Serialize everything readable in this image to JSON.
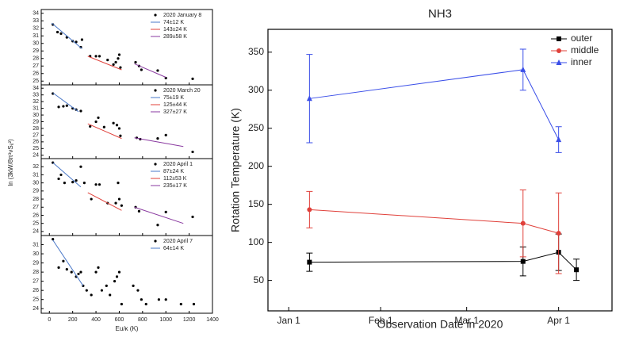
{
  "chart_data": [
    {
      "type": "scatter",
      "ylabel": "ln (3kW/8π³νSᵢⱼ²)",
      "xlim": [
        -70,
        1400
      ],
      "ylim": [
        24.5,
        34.5
      ],
      "yticks": [
        25,
        26,
        27,
        28,
        29,
        30,
        31,
        32,
        33,
        34
      ],
      "xticks": [
        0,
        200,
        400,
        600,
        800,
        1000,
        1200,
        1400
      ],
      "legend": "upper right",
      "series": [
        {
          "name": "2020 January 8",
          "color": "#000000",
          "marker": "dot",
          "x": [
            30,
            70,
            100,
            150,
            200,
            230,
            280,
            270,
            350,
            400,
            430,
            500,
            550,
            570,
            590,
            600,
            610,
            740,
            770,
            790,
            930,
            1000,
            1230
          ],
          "values": [
            32.5,
            31.5,
            31.3,
            30.8,
            30.3,
            30.2,
            30.5,
            29.5,
            28.3,
            28.3,
            28.3,
            27.8,
            27.2,
            27.5,
            28,
            28.5,
            26.8,
            27.5,
            27,
            26.5,
            26.4,
            25.4,
            25.3
          ]
        },
        {
          "name": "74±12 K",
          "color": "#4a78c8",
          "marker": "line",
          "x": [
            20,
            280
          ],
          "values": [
            32.7,
            29.3
          ]
        },
        {
          "name": "143±24 K",
          "color": "#e0403a",
          "marker": "line",
          "x": [
            330,
            620
          ],
          "values": [
            28.3,
            26.5
          ]
        },
        {
          "name": "289±58 K",
          "color": "#8a3aa0",
          "marker": "line",
          "x": [
            730,
            1000
          ],
          "values": [
            27.3,
            25.5
          ]
        }
      ]
    },
    {
      "type": "scatter",
      "xlim": [
        -70,
        1400
      ],
      "ylim": [
        23.5,
        34.5
      ],
      "yticks": [
        24,
        25,
        26,
        27,
        28,
        29,
        30,
        31,
        32,
        33,
        34
      ],
      "xticks": [
        0,
        200,
        400,
        600,
        800,
        1000,
        1200,
        1400
      ],
      "legend": "upper right",
      "series": [
        {
          "name": "2020 March 20",
          "color": "#000000",
          "marker": "dot",
          "x": [
            30,
            80,
            120,
            150,
            200,
            230,
            270,
            350,
            400,
            420,
            470,
            550,
            580,
            600,
            610,
            750,
            780,
            930,
            1000,
            1230
          ],
          "values": [
            33.2,
            31.2,
            31.3,
            31.4,
            31,
            30.8,
            30.6,
            28.3,
            29,
            29.6,
            28.2,
            28.8,
            28.5,
            28,
            26.9,
            26.6,
            26.4,
            26.5,
            27,
            24.5
          ]
        },
        {
          "name": "75±19 K",
          "color": "#4a78c8",
          "marker": "line",
          "x": [
            30,
            250
          ],
          "values": [
            33.3,
            30.5
          ]
        },
        {
          "name": "125±44 K",
          "color": "#e0403a",
          "marker": "line",
          "x": [
            330,
            620
          ],
          "values": [
            28.7,
            26.5
          ]
        },
        {
          "name": "327±27 K",
          "color": "#8a3aa0",
          "marker": "line",
          "x": [
            730,
            1150
          ],
          "values": [
            26.6,
            25.3
          ]
        }
      ]
    },
    {
      "type": "scatter",
      "xlim": [
        -70,
        1400
      ],
      "ylim": [
        23.5,
        33
      ],
      "yticks": [
        24,
        25,
        26,
        27,
        28,
        29,
        30,
        31,
        32
      ],
      "xticks": [
        0,
        200,
        400,
        600,
        800,
        1000,
        1200,
        1400
      ],
      "legend": "upper right",
      "series": [
        {
          "name": "2020 April 1",
          "color": "#000000",
          "marker": "dot",
          "x": [
            30,
            80,
            100,
            130,
            200,
            230,
            270,
            300,
            360,
            400,
            430,
            500,
            570,
            590,
            600,
            620,
            740,
            770,
            930,
            1000,
            1230
          ],
          "values": [
            32.5,
            30.5,
            31,
            30,
            30.1,
            30.3,
            32,
            30,
            28,
            29.8,
            29.8,
            27.5,
            27.5,
            30,
            28,
            27.2,
            27,
            26.5,
            24.8,
            26.4,
            25.8
          ]
        },
        {
          "name": "87±24 K",
          "color": "#4a78c8",
          "marker": "line",
          "x": [
            30,
            270
          ],
          "values": [
            32.5,
            29.5
          ]
        },
        {
          "name": "112±53 K",
          "color": "#e0403a",
          "marker": "line",
          "x": [
            330,
            620
          ],
          "values": [
            28.8,
            26.6
          ]
        },
        {
          "name": "235±17 K",
          "color": "#8a3aa0",
          "marker": "line",
          "x": [
            730,
            1150
          ],
          "values": [
            27,
            25
          ]
        }
      ]
    },
    {
      "type": "scatter",
      "xlabel": "Eu/κ (K)",
      "xlim": [
        -70,
        1400
      ],
      "ylim": [
        23.5,
        32
      ],
      "yticks": [
        24,
        25,
        26,
        27,
        28,
        29,
        30,
        31
      ],
      "xticks": [
        0,
        200,
        400,
        600,
        800,
        1000,
        1200,
        1400
      ],
      "legend": "upper right",
      "series": [
        {
          "name": "2020 April 7",
          "color": "#000000",
          "marker": "dot",
          "x": [
            30,
            80,
            120,
            150,
            190,
            230,
            250,
            270,
            290,
            320,
            360,
            400,
            420,
            450,
            490,
            520,
            560,
            580,
            600,
            620,
            720,
            760,
            790,
            830,
            940,
            1000,
            1130,
            1240
          ],
          "values": [
            31.6,
            28.5,
            29.2,
            28.3,
            28,
            27.5,
            27.8,
            28,
            26.5,
            26,
            25.5,
            28,
            28.5,
            26,
            26.5,
            25.5,
            27,
            27.5,
            28,
            24.5,
            26.5,
            26,
            25,
            24.5,
            25,
            25,
            24.5,
            24.5
          ]
        },
        {
          "name": "64±14 K",
          "color": "#4a78c8",
          "marker": "line",
          "x": [
            30,
            290
          ],
          "values": [
            31.5,
            26.5
          ]
        }
      ]
    },
    {
      "type": "line",
      "title": "NH3",
      "xlabel": "Observation Date in 2020",
      "ylabel": "Rotation Temperature (K)",
      "x": [
        "2020-01-08",
        "2020-03-20",
        "2020-04-01",
        "2020-04-07"
      ],
      "xlim": [
        "2019-12-25",
        "2020-04-19"
      ],
      "xticks": [
        {
          "value": "2020-01-01",
          "label": "Jan 1"
        },
        {
          "value": "2020-02-01",
          "label": "Feb 1"
        },
        {
          "value": "2020-03-01",
          "label": "Mar 1"
        },
        {
          "value": "2020-04-01",
          "label": "Apr 1"
        }
      ],
      "ylim": [
        10,
        380
      ],
      "yticks": [
        50,
        100,
        150,
        200,
        250,
        300,
        350
      ],
      "legend": "upper right",
      "series": [
        {
          "name": "outer",
          "color": "#000000",
          "marker": "square",
          "values": [
            74,
            75,
            87,
            64
          ],
          "errors": [
            12,
            19,
            24,
            14
          ]
        },
        {
          "name": "middle",
          "color": "#e0403a",
          "marker": "circle",
          "values": [
            143,
            125,
            112,
            null
          ],
          "errors": [
            24,
            44,
            53,
            null
          ]
        },
        {
          "name": "inner",
          "color": "#3a4ee8",
          "marker": "triangle",
          "values": [
            289,
            327,
            235,
            null
          ],
          "errors": [
            58,
            27,
            17,
            null
          ]
        }
      ]
    }
  ]
}
